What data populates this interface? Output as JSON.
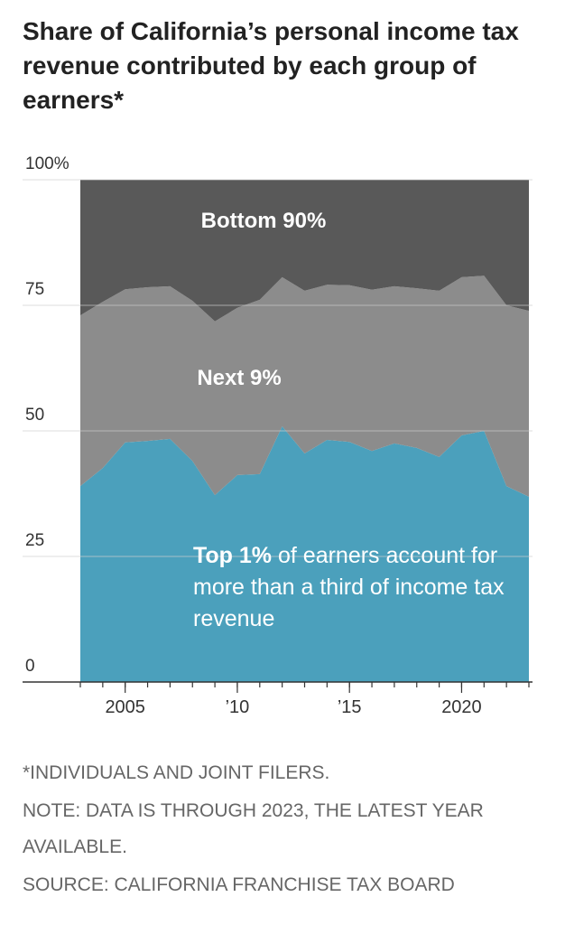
{
  "chart_data": {
    "type": "stacked_area",
    "title": "Share of California’s personal income tax revenue contributed by each group of earners*",
    "x": [
      2003,
      2004,
      2005,
      2006,
      2007,
      2008,
      2009,
      2010,
      2011,
      2012,
      2013,
      2014,
      2015,
      2016,
      2017,
      2018,
      2019,
      2020,
      2021,
      2022,
      2023
    ],
    "series": [
      {
        "name": "Top 1%",
        "color": "#4ba0bc",
        "values": [
          39,
          42.6,
          47.7,
          48,
          48.4,
          44,
          37.2,
          41.2,
          41.4,
          50.9,
          45.5,
          48.2,
          47.8,
          46,
          47.5,
          46.6,
          44.8,
          49.1,
          50,
          39,
          36.9
        ]
      },
      {
        "name": "Next 9%",
        "color": "#8c8c8c",
        "values": [
          34,
          33.1,
          30.5,
          30.6,
          30.4,
          31.9,
          34.6,
          33.3,
          34.7,
          29.7,
          32.4,
          30.9,
          31.2,
          32.1,
          31.3,
          31.8,
          33.1,
          31.5,
          30.9,
          36,
          37
        ]
      },
      {
        "name": "Bottom 90%",
        "color": "#595959",
        "values": [
          27,
          24.3,
          21.8,
          21.4,
          21.2,
          24.1,
          28.2,
          25.5,
          23.9,
          19.4,
          22.1,
          20.9,
          21,
          21.9,
          21.2,
          21.6,
          22.1,
          19.4,
          19.1,
          25,
          26.1
        ]
      }
    ],
    "annotation": "of earners account for more than a third of income tax revenue",
    "xlim": [
      2003,
      2023
    ],
    "xticks": [
      2005,
      {
        "value": 2010,
        "label": "’10"
      },
      {
        "value": 2015,
        "label": "’15"
      },
      2020
    ],
    "ylim": [
      0,
      100
    ],
    "yticks": [
      {
        "value": 100,
        "label": "100%"
      },
      75,
      50,
      25,
      0
    ],
    "grid": true,
    "notes": [
      "*INDIVIDUALS AND JOINT FILERS.",
      "NOTE: DATA IS THROUGH 2023, THE LATEST YEAR AVAILABLE.",
      "SOURCE: CALIFORNIA FRANCHISE TAX BOARD"
    ]
  }
}
